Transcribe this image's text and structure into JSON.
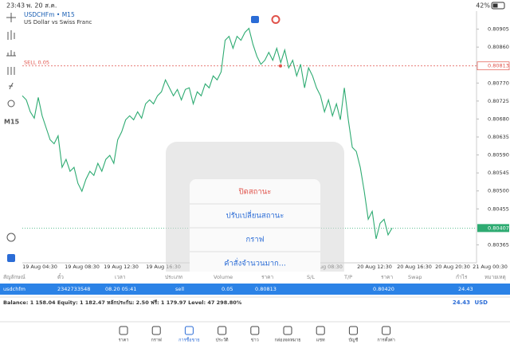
{
  "status_bar": {
    "time": "23:43",
    "date": "พ. 20 ส.ค.",
    "battery": "42%"
  },
  "chart_data": {
    "type": "line",
    "symbol": "USDCHFm • M15",
    "description": "US Dollar vs Swiss Franc",
    "timeframe": "M15",
    "color": "#2eab72",
    "ylim": [
      0.8032,
      0.8095
    ],
    "yticks": [
      0.80905,
      {
        "value": 0.8086,
        "label": "0.80860"
      },
      {
        "value": 0.8077,
        "label": "0.80770"
      },
      0.80725,
      {
        "value": 0.8068,
        "label": "0.80680"
      },
      0.80635,
      {
        "value": 0.8059,
        "label": "0.80590"
      },
      0.80545,
      {
        "value": 0.805,
        "label": "0.80500"
      },
      0.80455,
      0.80365
    ],
    "x_labels": [
      "19 Aug 04:30",
      "19 Aug 08:30",
      "19 Aug 12:30",
      "19 Aug 16:30",
      "20 Aug 08:30",
      "20 Aug 12:30",
      "20 Aug 16:30",
      "20 Aug 20:30",
      "21 Aug 00:30"
    ],
    "values": [
      0.80738,
      0.80728,
      0.80698,
      0.80682,
      0.80734,
      0.80688,
      0.80658,
      0.80628,
      0.80618,
      0.80638,
      0.80559,
      0.80579,
      0.80549,
      0.80559,
      0.80519,
      0.80499,
      0.80529,
      0.80549,
      0.80539,
      0.80569,
      0.80549,
      0.80579,
      0.80589,
      0.80569,
      0.80628,
      0.80648,
      0.80678,
      0.80688,
      0.80678,
      0.80698,
      0.80682,
      0.80718,
      0.80728,
      0.80718,
      0.80738,
      0.80748,
      0.80778,
      0.80758,
      0.80738,
      0.80754,
      0.80728,
      0.80754,
      0.80758,
      0.80718,
      0.80748,
      0.80738,
      0.80768,
      0.80758,
      0.80788,
      0.80778,
      0.80798,
      0.80877,
      0.80887,
      0.80857,
      0.80887,
      0.80877,
      0.80897,
      0.80907,
      0.80867,
      0.80837,
      0.80817,
      0.80827,
      0.80847,
      0.80827,
      0.80857,
      0.80821,
      0.80853,
      0.80808,
      0.80827,
      0.80788,
      0.80817,
      0.80758,
      0.80808,
      0.80788,
      0.80758,
      0.80738,
      0.80698,
      0.80728,
      0.80688,
      0.80718,
      0.80678,
      0.80758,
      0.80678,
      0.80609,
      0.80599,
      0.80559,
      0.80499,
      0.80429,
      0.80449,
      0.8038,
      0.80419,
      0.80429,
      0.8039,
      0.80407
    ],
    "sell_line": {
      "label": "SELL 0.05",
      "price": 0.80813,
      "color": "#e0524a"
    },
    "current_price": 0.80407
  },
  "dialog": {
    "items": [
      "ปิดสถานะ",
      "ปรับเปลี่ยนสถานะ",
      "กราฟ",
      "คำสั่งจำนวนมาก..."
    ]
  },
  "table": {
    "headers": [
      "สัญลักษณ์",
      "ตั๋ว",
      "เวลา",
      "ประเภท",
      "Volume",
      "ราคา",
      "S/L",
      "T/P",
      "ราคา",
      "Swap",
      "กำไร",
      "หมายเหตุ"
    ],
    "row": [
      "usdchfm",
      "2342733548",
      "08.20 05:41",
      "sell",
      "0.05",
      "0.80813",
      "0.80420",
      "24.43"
    ]
  },
  "summary": {
    "text": "Balance: 1 158.04 Equity: 1 182.47 หลักประกัน: 2.50 ฟรี: 1 179.97 Level: 47 298.80%",
    "profit": "24.43",
    "currency": "USD"
  },
  "tabs": [
    "ราคา",
    "กราฟ",
    "การซื้อขาย",
    "ประวัติ",
    "ข่าว",
    "กล่องจดหมาย",
    "แชท",
    "บัญชี",
    "การตั้งค่า"
  ]
}
